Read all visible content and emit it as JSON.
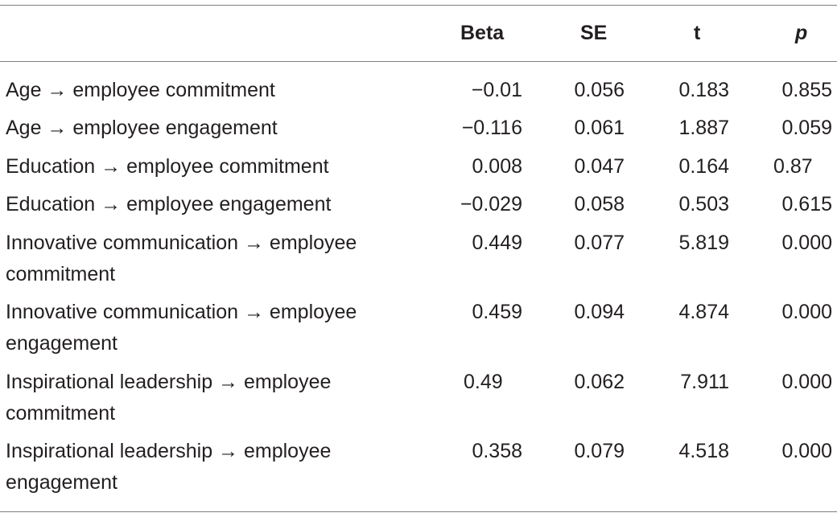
{
  "table": {
    "headers": {
      "label": "",
      "beta": "Beta",
      "se": "SE",
      "t": "t",
      "p": "p"
    },
    "rows": [
      {
        "label": "Age → employee commitment",
        "beta": "−0.01",
        "se": "0.056",
        "t": "0.183",
        "p": "0.855"
      },
      {
        "label": "Age → employee engagement",
        "beta": "−0.116",
        "se": "0.061",
        "t": "1.887",
        "p": "0.059"
      },
      {
        "label": "Education → employee commitment",
        "beta": "0.008",
        "se": "0.047",
        "t": "0.164",
        "p": "0.87"
      },
      {
        "label": "Education → employee engagement",
        "beta": "−0.029",
        "se": "0.058",
        "t": "0.503",
        "p": "0.615"
      },
      {
        "label": "Innovative communication → employee commitment",
        "beta": "0.449",
        "se": "0.077",
        "t": "5.819",
        "p": "0.000"
      },
      {
        "label": "Innovative communication → employee engagement",
        "beta": "0.459",
        "se": "0.094",
        "t": "4.874",
        "p": "0.000"
      },
      {
        "label": "Inspirational leadership → employee commitment",
        "beta": "0.49",
        "se": "0.062",
        "t": "7.911",
        "p": "0.000"
      },
      {
        "label": "Inspirational leadership → employee engagement",
        "beta": "0.358",
        "se": "0.079",
        "t": "4.518",
        "p": "0.000"
      }
    ]
  }
}
